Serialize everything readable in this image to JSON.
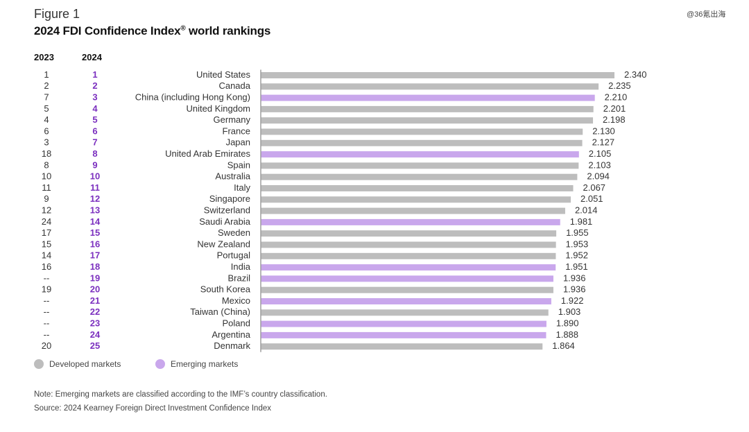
{
  "header": {
    "figure_label": "Figure 1",
    "title": "2024 FDI Confidence Index",
    "title_mark": "®",
    "title_suffix": " world rankings",
    "watermark": "@36氪出海"
  },
  "columns": {
    "y2023": "2023",
    "y2024": "2024"
  },
  "legend": {
    "developed": "Developed markets",
    "emerging": "Emerging markets"
  },
  "footer": {
    "note": "Note: Emerging markets are classified according to the IMF’s country classification.",
    "source": "Source: 2024 Kearney Foreign Direct Investment Confidence Index"
  },
  "colors": {
    "developed": "#bdbdbd",
    "emerging": "#c9a7ec",
    "rank2024": "#7b2fbf",
    "axis": "#9e9e9e"
  },
  "chart_data": {
    "type": "bar",
    "orientation": "horizontal",
    "title": "2024 FDI Confidence Index® world rankings",
    "xlim": [
      0,
      2.34
    ],
    "categories": [
      "United States",
      "Canada",
      "China (including Hong Kong)",
      "United Kingdom",
      "Germany",
      "France",
      "Japan",
      "United Arab Emirates",
      "Spain",
      "Australia",
      "Italy",
      "Singapore",
      "Switzerland",
      "Saudi Arabia",
      "Sweden",
      "New Zealand",
      "Portugal",
      "India",
      "Brazil",
      "South Korea",
      "Mexico",
      "Taiwan (China)",
      "Poland",
      "Argentina",
      "Denmark"
    ],
    "values": [
      2.34,
      2.235,
      2.21,
      2.201,
      2.198,
      2.13,
      2.127,
      2.105,
      2.103,
      2.094,
      2.067,
      2.051,
      2.014,
      1.981,
      1.955,
      1.953,
      1.952,
      1.951,
      1.936,
      1.936,
      1.922,
      1.903,
      1.89,
      1.888,
      1.864
    ],
    "value_labels": [
      "2.340",
      "2.235",
      "2.210",
      "2.201",
      "2.198",
      "2.130",
      "2.127",
      "2.105",
      "2.103",
      "2.094",
      "2.067",
      "2.051",
      "2.014",
      "1.981",
      "1.955",
      "1.953",
      "1.952",
      "1.951",
      "1.936",
      "1.936",
      "1.922",
      "1.903",
      "1.890",
      "1.888",
      "1.864"
    ],
    "rank_2023": [
      "1",
      "2",
      "7",
      "5",
      "4",
      "6",
      "3",
      "18",
      "8",
      "10",
      "11",
      "9",
      "12",
      "24",
      "17",
      "15",
      "14",
      "16",
      "--",
      "19",
      "--",
      "--",
      "--",
      "--",
      "20"
    ],
    "rank_2024": [
      "1",
      "2",
      "3",
      "4",
      "5",
      "6",
      "7",
      "8",
      "9",
      "10",
      "11",
      "12",
      "13",
      "14",
      "15",
      "16",
      "17",
      "18",
      "19",
      "20",
      "21",
      "22",
      "23",
      "24",
      "25"
    ],
    "market": [
      "developed",
      "developed",
      "emerging",
      "developed",
      "developed",
      "developed",
      "developed",
      "emerging",
      "developed",
      "developed",
      "developed",
      "developed",
      "developed",
      "emerging",
      "developed",
      "developed",
      "developed",
      "emerging",
      "emerging",
      "developed",
      "emerging",
      "developed",
      "emerging",
      "emerging",
      "developed"
    ],
    "legend_position": "bottom-left",
    "grid": false
  }
}
